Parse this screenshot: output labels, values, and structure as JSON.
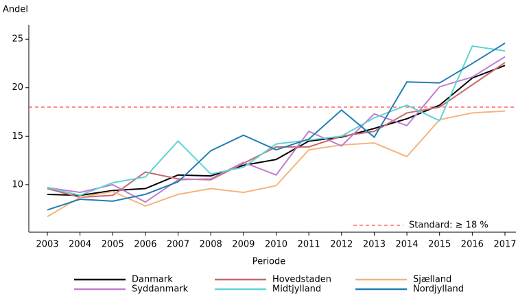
{
  "chart_data": {
    "type": "line",
    "y_label": "Andel",
    "x_label": "Periode",
    "categories": [
      "2003",
      "2004",
      "2005",
      "2006",
      "2007",
      "2008",
      "2009",
      "2010",
      "2011",
      "2012",
      "2013",
      "2014",
      "2015",
      "2016",
      "2017"
    ],
    "series": [
      {
        "name": "Danmark",
        "color": "#000000",
        "values": [
          9.0,
          8.9,
          9.4,
          9.6,
          11.0,
          10.9,
          12.0,
          12.6,
          14.5,
          14.9,
          15.8,
          16.8,
          18.2,
          21.0,
          22.3
        ]
      },
      {
        "name": "Hovedstaden",
        "color": "#c8686a",
        "values": [
          9.6,
          8.7,
          8.9,
          11.3,
          10.6,
          10.5,
          12.2,
          13.9,
          13.9,
          15.0,
          15.5,
          17.4,
          18.0,
          20.3,
          22.6
        ]
      },
      {
        "name": "Sjælland",
        "color": "#f5b47d",
        "values": [
          6.7,
          8.7,
          9.3,
          7.8,
          9.0,
          9.6,
          9.2,
          9.9,
          13.6,
          14.1,
          14.3,
          12.9,
          16.7,
          17.4,
          17.6
        ]
      },
      {
        "name": "Syddanmark",
        "color": "#c37ccf",
        "values": [
          9.7,
          9.2,
          10.0,
          8.2,
          10.5,
          10.6,
          12.3,
          11.0,
          15.5,
          14.0,
          17.3,
          16.1,
          20.1,
          21.1,
          23.2
        ]
      },
      {
        "name": "Midtjylland",
        "color": "#5fd3d3",
        "values": [
          9.7,
          8.9,
          10.2,
          10.8,
          14.5,
          11.1,
          11.8,
          14.2,
          14.6,
          15.0,
          16.9,
          18.2,
          16.6,
          24.3,
          23.8
        ]
      },
      {
        "name": "Nordjylland",
        "color": "#1f7db5",
        "values": [
          7.4,
          8.5,
          8.3,
          9.0,
          10.3,
          13.5,
          15.1,
          13.6,
          14.7,
          17.7,
          14.9,
          20.6,
          20.5,
          22.5,
          24.6
        ]
      }
    ],
    "reference": {
      "value": 18,
      "label": "Standard: ≥ 18 %",
      "color": "#ff4d4d"
    },
    "ylim": [
      5.1,
      26.5
    ],
    "yticks": [
      10,
      15,
      20,
      25
    ]
  }
}
